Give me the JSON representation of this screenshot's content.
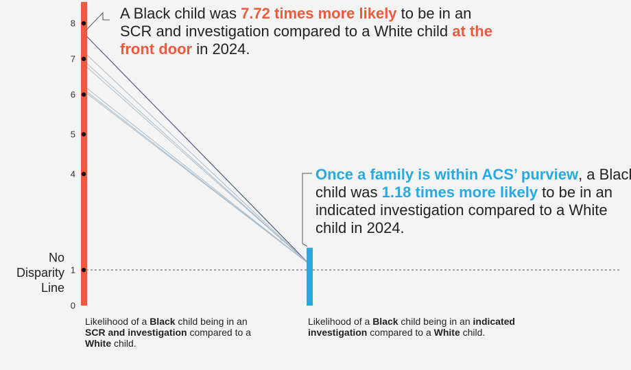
{
  "chart_data": {
    "type": "slope",
    "y_ticks": [
      0,
      1,
      4,
      5,
      6,
      7,
      8
    ],
    "y_tick_dots": [
      1,
      4,
      5,
      6,
      7,
      8
    ],
    "reference_line": {
      "value": 1,
      "label_line1": "No",
      "label_line2": "Disparity",
      "label_line3": "Line"
    },
    "left_values": [
      7.72,
      7.2,
      6.95,
      6.85,
      6.25,
      6.15,
      6.1
    ],
    "right_values": [
      1.18,
      1.18,
      1.18,
      1.18,
      1.18,
      1.18,
      1.18
    ],
    "left_bar": {
      "value": 8.6,
      "color": "#ee5a3e"
    },
    "right_bar": {
      "value": 1.18,
      "color": "#29a9e1"
    },
    "highlight_value": 7.72,
    "highlight_right_value": 1.18
  },
  "annotations": {
    "top": {
      "part1": "A Black child was ",
      "highlight1": "7.72 times more likely",
      "part2": " to be in an SCR and investigation compared to a White child ",
      "highlight2": "at the front door",
      "part3": " in 2024."
    },
    "right": {
      "highlight1": "Once a family is within ACS’ purview",
      "part1": ", a Black child was ",
      "highlight2": "1.18 times more likely",
      "part2": " to be in an indicated investigation compared to a White child in 2024."
    }
  },
  "captions": {
    "left": {
      "t1": "Likelihood of a ",
      "b1": "Black",
      "t2": " child being in an ",
      "b2": "SCR and investigation",
      "t3": " compared to a ",
      "b3": "White",
      "t4": " child."
    },
    "right": {
      "t1": "Likelihood of a ",
      "b1": "Black",
      "t2": " child being in an ",
      "b2": "indicated investigation",
      "t3": " compared to a ",
      "b3": "White",
      "t4": " child."
    }
  },
  "colors": {
    "left_bar": "#ee5a3e",
    "right_bar": "#29a9e1",
    "slope_lines": "#a9bccb",
    "highlight_line": "#4a5a7a"
  }
}
